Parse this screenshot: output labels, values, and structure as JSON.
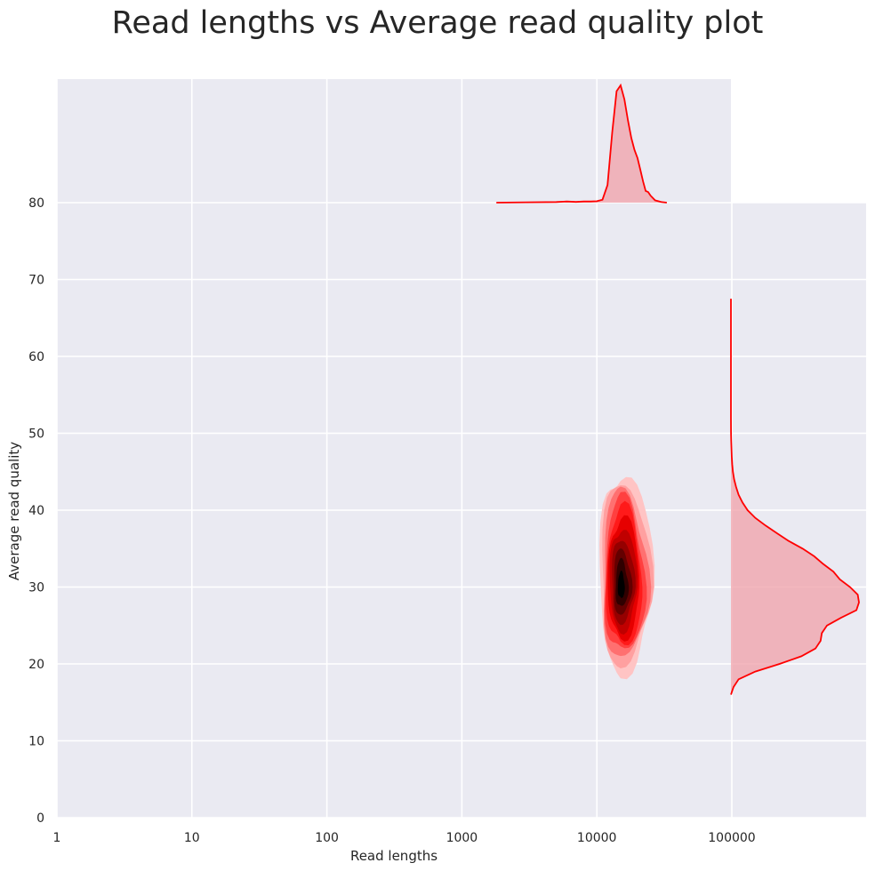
{
  "chart_data": {
    "type": "kde-joint",
    "title": "Read lengths vs Average read quality plot",
    "xlabel": "Read lengths",
    "ylabel": "Average read quality",
    "x_scale": "log",
    "xlim": [
      1,
      1000000
    ],
    "ylim": [
      0,
      80
    ],
    "x_ticks": [
      1,
      10,
      100,
      1000,
      10000,
      100000
    ],
    "x_tick_labels": [
      "1",
      "10",
      "100",
      "1000",
      "10000",
      "100000"
    ],
    "y_ticks": [
      0,
      10,
      20,
      30,
      40,
      50,
      60,
      70,
      80
    ],
    "y_tick_labels": [
      "0",
      "10",
      "20",
      "30",
      "40",
      "50",
      "60",
      "70",
      "80"
    ],
    "grid": true,
    "colors": {
      "background": "#eaeaf2",
      "grid": "#ffffff",
      "line": "#ff0000",
      "fill": "#f0a0a8"
    },
    "joint_density": {
      "center": {
        "x": 15000,
        "y": 30
      },
      "x_range": [
        10500,
        26000
      ],
      "y_range": [
        19,
        45
      ],
      "levels": [
        "#ffc4c4",
        "#ffa0a0",
        "#ff7070",
        "#ff4040",
        "#ff1a1a",
        "#e60000",
        "#c00000",
        "#950000",
        "#640000",
        "#300000",
        "#000000"
      ]
    },
    "marginal_x": {
      "variable": "Read lengths",
      "x": [
        1800,
        3000,
        5000,
        6000,
        7000,
        8000,
        9000,
        10000,
        11000,
        12000,
        13000,
        14000,
        15000,
        16000,
        17000,
        18000,
        19000,
        20000,
        21000,
        22000,
        23000,
        24000,
        25000,
        27000,
        30000,
        33000
      ],
      "density": [
        0.0,
        0.003,
        0.005,
        0.01,
        0.006,
        0.01,
        0.01,
        0.012,
        0.025,
        0.15,
        0.6,
        0.95,
        1.0,
        0.88,
        0.7,
        0.55,
        0.45,
        0.38,
        0.28,
        0.18,
        0.1,
        0.09,
        0.06,
        0.02,
        0.005,
        0.0
      ]
    },
    "marginal_y": {
      "variable": "Average read quality",
      "y": [
        16,
        17,
        18,
        19,
        20,
        21,
        22,
        23,
        24,
        25,
        26,
        27,
        28,
        29,
        30,
        31,
        32,
        33,
        34,
        35,
        36,
        37,
        38,
        39,
        40,
        41,
        42,
        43,
        44,
        45,
        46,
        47,
        48,
        49,
        50,
        52,
        55,
        60,
        67.5
      ],
      "density": [
        0.0,
        0.02,
        0.06,
        0.19,
        0.38,
        0.55,
        0.66,
        0.7,
        0.71,
        0.75,
        0.86,
        0.98,
        1.0,
        0.99,
        0.93,
        0.85,
        0.8,
        0.72,
        0.65,
        0.56,
        0.45,
        0.36,
        0.27,
        0.19,
        0.13,
        0.09,
        0.06,
        0.04,
        0.025,
        0.015,
        0.01,
        0.006,
        0.004,
        0.002,
        0.001,
        0.0,
        0.0,
        0.0,
        0.0
      ]
    }
  }
}
